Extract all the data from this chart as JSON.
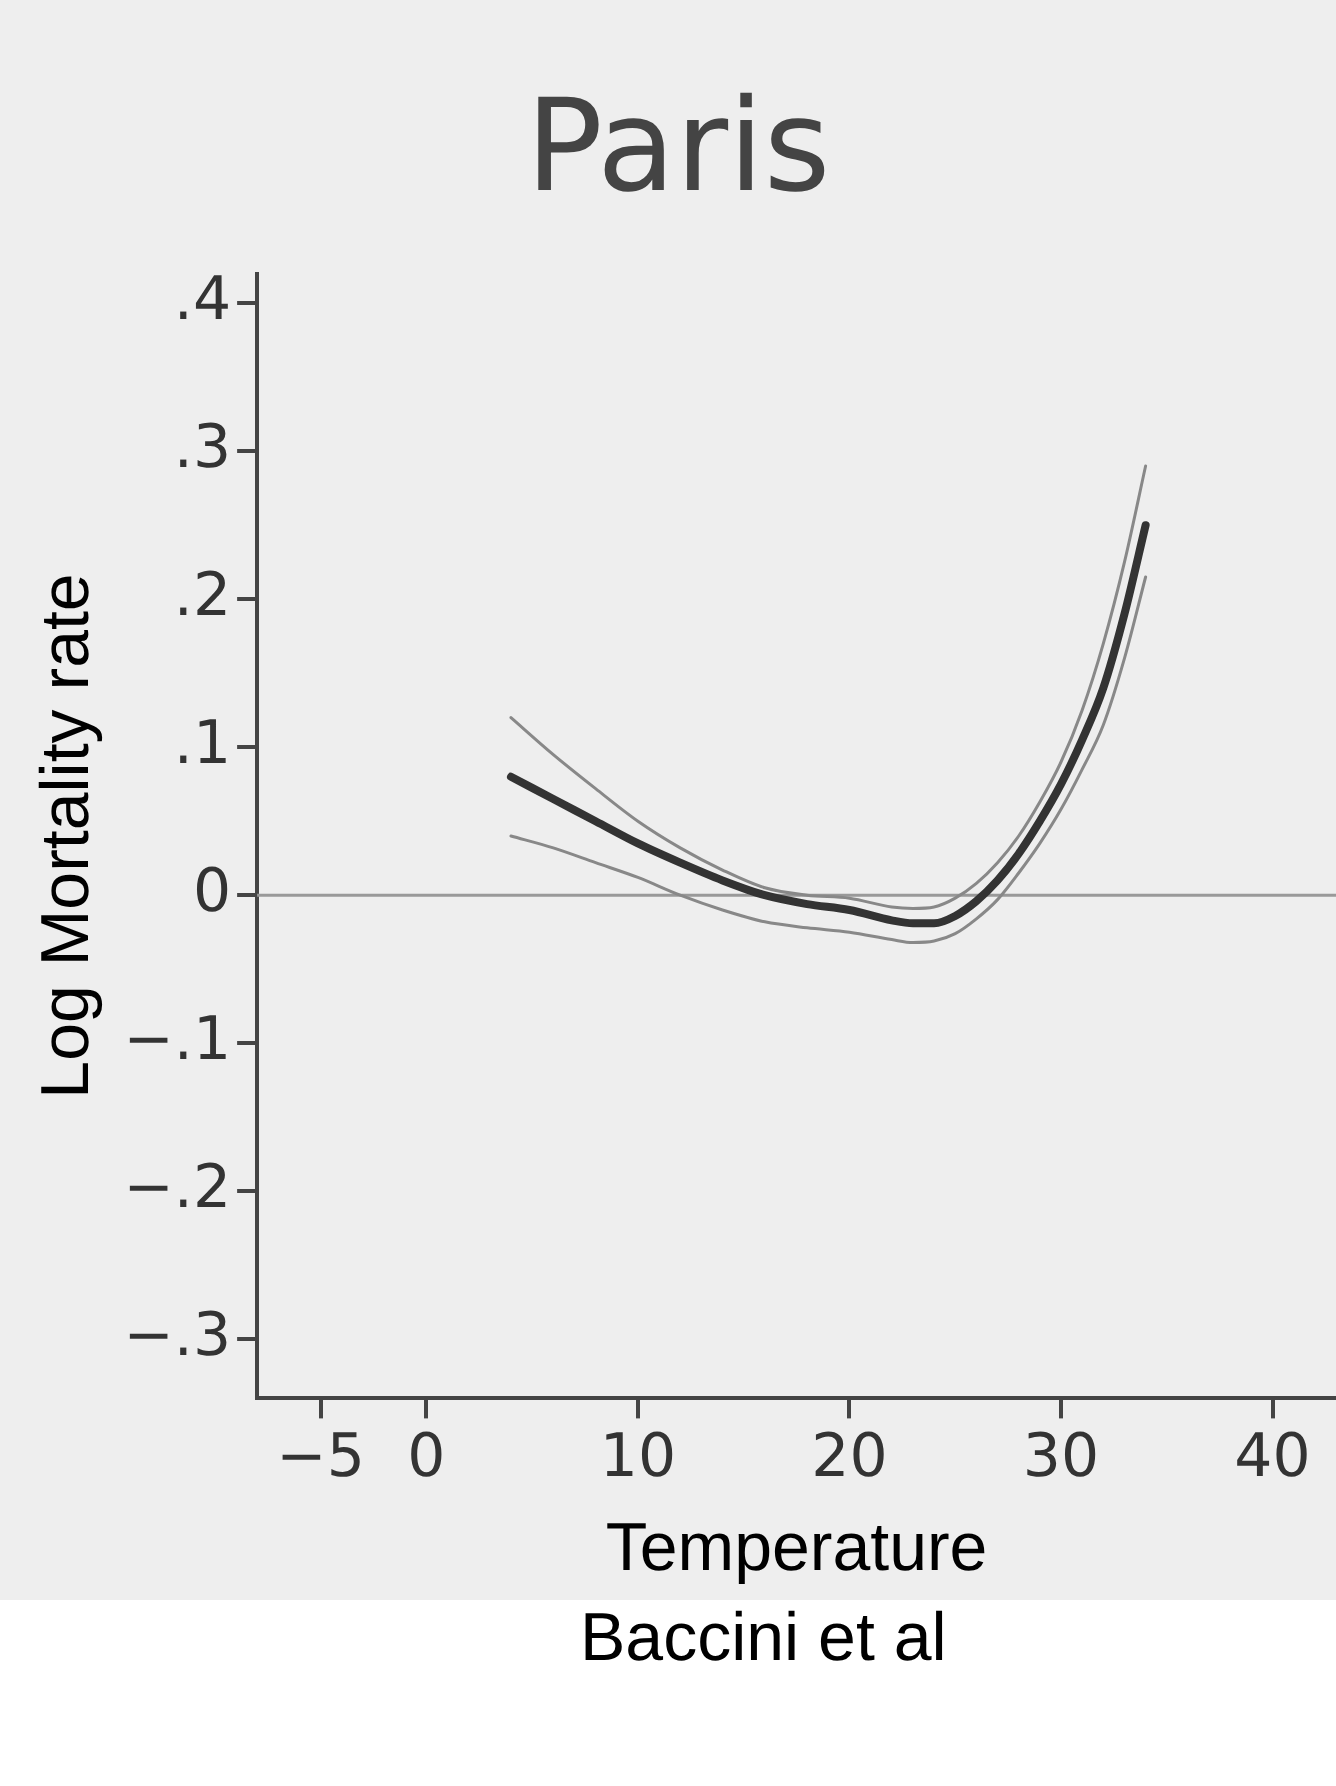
{
  "chart_data": {
    "type": "line",
    "title": "Paris",
    "xlabel": "Temperature",
    "ylabel": "Log Mortality rate",
    "annotations": [
      "Baccini et al"
    ],
    "x": [
      4,
      6,
      8,
      10,
      12,
      14,
      16,
      18,
      20,
      22,
      23,
      24,
      25,
      26,
      27,
      28,
      29,
      30,
      31,
      32,
      33,
      34
    ],
    "series": [
      {
        "color": "#888888",
        "values": [
          0.12,
          0.095,
          0.072,
          0.05,
          0.032,
          0.017,
          0.005,
          0.0,
          -0.002,
          -0.008,
          -0.009,
          -0.008,
          -0.002,
          0.008,
          0.022,
          0.04,
          0.063,
          0.09,
          0.125,
          0.17,
          0.225,
          0.29
        ]
      },
      {
        "color": "#333333",
        "values": [
          0.08,
          0.065,
          0.05,
          0.035,
          0.022,
          0.01,
          0.0,
          -0.006,
          -0.01,
          -0.017,
          -0.019,
          -0.019,
          -0.014,
          -0.004,
          0.01,
          0.028,
          0.05,
          0.075,
          0.105,
          0.14,
          0.19,
          0.25
        ]
      },
      {
        "color": "#888888",
        "values": [
          0.04,
          0.032,
          0.022,
          0.012,
          0.0,
          -0.01,
          -0.018,
          -0.022,
          -0.025,
          -0.03,
          -0.032,
          -0.031,
          -0.026,
          -0.016,
          -0.003,
          0.015,
          0.035,
          0.058,
          0.085,
          0.115,
          0.16,
          0.215
        ]
      }
    ],
    "xlim": [
      -8,
      43
    ],
    "xticks": [
      {
        "value": -5,
        "label": "−5"
      },
      0,
      10,
      20,
      30,
      40
    ],
    "ylim": [
      -0.34,
      0.42
    ],
    "yticks": [
      {
        "value": -0.3,
        "label": "−.3"
      },
      {
        "value": -0.2,
        "label": "−.2"
      },
      {
        "value": -0.1,
        "label": "−.1"
      },
      0,
      {
        "value": 0.1,
        "label": ".1"
      },
      {
        "value": 0.2,
        "label": ".2"
      },
      {
        "value": 0.3,
        "label": ".3"
      },
      {
        "value": 0.4,
        "label": ".4"
      }
    ],
    "ref_lines": [
      {
        "axis": "y",
        "value": 0,
        "color": "#999999"
      }
    ],
    "grid": false,
    "legend": false,
    "marker": "none",
    "line_style": "solid"
  }
}
